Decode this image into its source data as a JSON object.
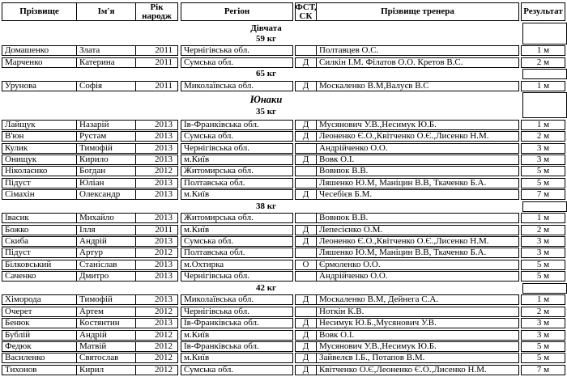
{
  "table": {
    "header": {
      "surname": "Прізвище",
      "first_name": "Ім'я",
      "birth_year": "Рік народж",
      "region": "Регіон",
      "fst": "ФСТ, СК",
      "coach": "Прізвище тренера",
      "result": "Результат"
    },
    "lines": [
      {
        "type": "band",
        "labels": [
          {
            "text": "Дівчата",
            "style": "bold"
          },
          {
            "text": "59 кг",
            "style": "bold"
          }
        ]
      },
      {
        "type": "row",
        "surname": "Домашенко",
        "first_name": "Злата",
        "birth_year": "2011",
        "region": "Чернігівська обл.",
        "fst": "",
        "coach": "Полтавцев О.С.",
        "result": "1 м"
      },
      {
        "type": "row",
        "surname": "Марченко",
        "first_name": "Катерина",
        "birth_year": "2011",
        "region": "Сумська обл.",
        "fst": "Д",
        "coach": "Силкін І.М. Філатов О.О. Кретов В.С.",
        "result": "2 м"
      },
      {
        "type": "band",
        "labels": [
          {
            "text": "65 кг",
            "style": "bold"
          }
        ]
      },
      {
        "type": "row",
        "surname": "Урунова",
        "first_name": "Софія",
        "birth_year": "2011",
        "region": "Миколаївська обл.",
        "fst": "Д",
        "coach": "Москаленко В.М,Валуєв В.С",
        "result": "1 м"
      },
      {
        "type": "band",
        "labels": [
          {
            "text": "Юнаки",
            "style": "italic"
          },
          {
            "text": "35 кг",
            "style": "bold"
          }
        ]
      },
      {
        "type": "row",
        "surname": "Лайщук",
        "first_name": "Назарій",
        "birth_year": "2013",
        "region": "Ів-Франківська обл.",
        "fst": "Д",
        "coach": "Мусянович У.В.,Несимук Ю.Б.",
        "result": "1 м"
      },
      {
        "type": "row",
        "surname": "В'юн",
        "first_name": "Рустам",
        "birth_year": "2013",
        "region": "Сумська обл.",
        "fst": "Д",
        "coach": "Леоненко Є.О.,Квітченко О.Є.,Лисенко Н.М.",
        "result": "2 м"
      },
      {
        "type": "row",
        "surname": "Кулик",
        "first_name": "Тимофій",
        "birth_year": "2013",
        "region": "Чернігівська обл.",
        "fst": "",
        "coach": "Андрійченко О.О.",
        "result": "3 м"
      },
      {
        "type": "row",
        "surname": "Онищук",
        "first_name": "Кирило",
        "birth_year": "2013",
        "region": "м.Київ",
        "fst": "Д",
        "coach": "Вовк О.І.",
        "result": "3 м"
      },
      {
        "type": "row",
        "surname": "Ніколаєнко",
        "first_name": "Богдан",
        "birth_year": "2012",
        "region": "Житомирська обл.",
        "fst": "",
        "coach": "Вовнюк В.В.",
        "result": "5 м"
      },
      {
        "type": "row",
        "surname": "Підуст",
        "first_name": "Юліан",
        "birth_year": "2013",
        "region": "Полтавська обл.",
        "fst": "",
        "coach": "Ляшенко Ю.М, Маніцин В.В, Ткаченко Б.А.",
        "result": "5 м"
      },
      {
        "type": "row",
        "surname": "Сімахін",
        "first_name": "Олександр",
        "birth_year": "2013",
        "region": "м.Київ",
        "fst": "Д",
        "coach": "Чесебієв Б.М.",
        "result": "7 м"
      },
      {
        "type": "band",
        "labels": [
          {
            "text": "38 кг",
            "style": "bold"
          }
        ]
      },
      {
        "type": "row",
        "surname": "Івасик",
        "first_name": "Михайло",
        "birth_year": "2013",
        "region": "Житомирська обл.",
        "fst": "",
        "coach": "Вовнюк В.В.",
        "result": "1 м"
      },
      {
        "type": "row",
        "surname": "Божко",
        "first_name": "Ілля",
        "birth_year": "2011",
        "region": "м.Київ",
        "fst": "Д",
        "coach": "Лепесієнко О.М.",
        "result": "2 м"
      },
      {
        "type": "row",
        "surname": "Скиба",
        "first_name": "Андрій",
        "birth_year": "2013",
        "region": "Сумська обл.",
        "fst": "Д",
        "coach": "Леоненко Є.О.,Квітченко О.Є.,Лисенко Н.М.",
        "result": "3 м"
      },
      {
        "type": "row",
        "surname": "Підуст",
        "first_name": "Артур",
        "birth_year": "2012",
        "region": "Полтавська обл.",
        "fst": "",
        "coach": "Ляшенко Ю.М, Маніцин В.В, Ткаченко Б.А.",
        "result": "3 м"
      },
      {
        "type": "row",
        "surname": "Білковський",
        "first_name": "Станіслав",
        "birth_year": "2013",
        "region": "м.Охтирка",
        "fst": "О",
        "coach": "Єрмоленко О.О.",
        "result": "5 м"
      },
      {
        "type": "row",
        "surname": "Саченко",
        "first_name": "Дмитро",
        "birth_year": "2013",
        "region": "Чернігівська обл.",
        "fst": "",
        "coach": "Андрійченко О.О.",
        "result": "5 м"
      },
      {
        "type": "band",
        "labels": [
          {
            "text": "42 кг",
            "style": "bold"
          }
        ]
      },
      {
        "type": "row",
        "surname": "Хіморода",
        "first_name": "Тимофій",
        "birth_year": "2013",
        "region": "Миколаївська обл.",
        "fst": "Д",
        "coach": "Москаленко В.М, Дейнега С.А.",
        "result": "1 м"
      },
      {
        "type": "row",
        "surname": "Очерет",
        "first_name": "Артем",
        "birth_year": "2012",
        "region": "Чернігівська обл.",
        "fst": "",
        "coach": "Ноткін К.В.",
        "result": "2 м"
      },
      {
        "type": "row",
        "surname": "Бенюк",
        "first_name": "Костянтин",
        "birth_year": "2013",
        "region": "Ів-Франківська обл.",
        "fst": "Д",
        "coach": "Несимук Ю.Б.,Мусянович У.В.",
        "result": "3 м"
      },
      {
        "type": "row",
        "surname": "Бублій",
        "first_name": "Андрій",
        "birth_year": "2012",
        "region": "м.Київ",
        "fst": "Д",
        "coach": "Вовк О.І.",
        "result": "3 м"
      },
      {
        "type": "row",
        "surname": "Федюк",
        "first_name": "Матвій",
        "birth_year": "2012",
        "region": "Ів-Франківська обл.",
        "fst": "Д",
        "coach": "Мусянович У.В.,Несимук Ю.Б.",
        "result": "5 м"
      },
      {
        "type": "row",
        "surname": "Василенко",
        "first_name": "Святослав",
        "birth_year": "2012",
        "region": "м.Київ",
        "fst": "Д",
        "coach": "Зайвелєв І.Б., Потапов В.М.",
        "result": "5 м"
      },
      {
        "type": "row",
        "surname": "Тихонов",
        "first_name": "Кирил",
        "birth_year": "2012",
        "region": "Сумська обл.",
        "fst": "Д",
        "coach": "Квітченко О.Є,Леоненко Є.О.,Лисенко Н.М.",
        "result": "7 м"
      }
    ]
  }
}
